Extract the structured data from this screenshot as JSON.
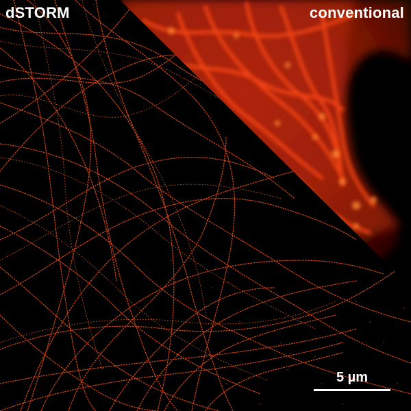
{
  "labels": {
    "left": "dSTORM",
    "right": "conventional"
  },
  "scale_bar": {
    "text": "5 µm"
  },
  "colors": {
    "background": "#000000",
    "conventional_glow": "#ff3a10",
    "conventional_core": "#ff6a20",
    "filament": "#e0501a",
    "label": "#ffffff"
  }
}
